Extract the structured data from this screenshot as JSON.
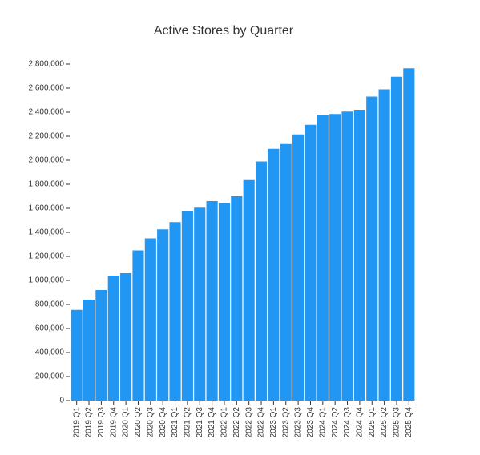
{
  "chart_data": {
    "type": "bar",
    "title": "Active Stores by Quarter",
    "categories": [
      "2019 Q1",
      "2019 Q2",
      "2019 Q3",
      "2019 Q4",
      "2020 Q1",
      "2020 Q2",
      "2020 Q3",
      "2020 Q4",
      "2021 Q1",
      "2021 Q2",
      "2021 Q3",
      "2021 Q4",
      "2022 Q1",
      "2022 Q2",
      "2022 Q3",
      "2022 Q4",
      "2023 Q1",
      "2023 Q2",
      "2023 Q3",
      "2023 Q4",
      "2024 Q1",
      "2024 Q2",
      "2024 Q3",
      "2024 Q4",
      "2025 Q1",
      "2025 Q2",
      "2025 Q3",
      "2025 Q4"
    ],
    "values": [
      755000,
      840000,
      920000,
      1040000,
      1060000,
      1250000,
      1350000,
      1425000,
      1485000,
      1575000,
      1605000,
      1660000,
      1645000,
      1700000,
      1835000,
      1990000,
      2095000,
      2135000,
      2215000,
      2295000,
      2380000,
      2385000,
      2405000,
      2420000,
      2530000,
      2590000,
      2695000,
      2765000
    ],
    "color": "#2196f3",
    "ylim": [
      0,
      2800000
    ],
    "yticks": [
      0,
      {
        "value": 200000,
        "label": "200,000"
      },
      {
        "value": 400000,
        "label": "400,000"
      },
      {
        "value": 600000,
        "label": "600,000"
      },
      {
        "value": 800000,
        "label": "800,000"
      },
      {
        "value": 1000000,
        "label": "1,000,000"
      },
      {
        "value": 1200000,
        "label": "1,200,000"
      },
      {
        "value": 1400000,
        "label": "1,400,000"
      },
      {
        "value": 1600000,
        "label": "1,600,000"
      },
      {
        "value": 1800000,
        "label": "1,800,000"
      },
      {
        "value": 2000000,
        "label": "2,000,000"
      },
      {
        "value": 2200000,
        "label": "2,200,000"
      },
      {
        "value": 2400000,
        "label": "2,400,000"
      },
      {
        "value": 2600000,
        "label": "2,600,000"
      },
      {
        "value": 2800000,
        "label": "2,800,000"
      }
    ],
    "grid": false
  }
}
